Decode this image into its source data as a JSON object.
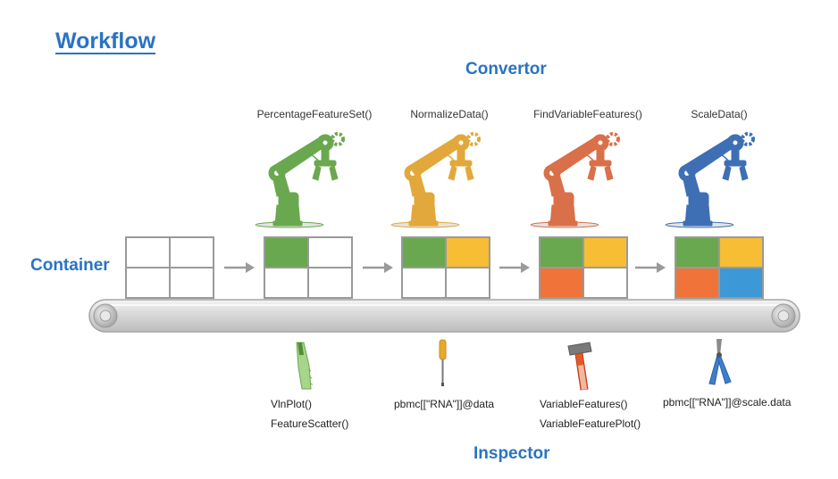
{
  "title": "Workflow",
  "convertor_label": "Convertor",
  "container_label": "Container",
  "inspector_label": "Inspector",
  "steps": [
    {
      "function": "PercentageFeatureSet()",
      "robot_color": "#6aa84f"
    },
    {
      "function": "NormalizeData()",
      "robot_color": "#e3a83b"
    },
    {
      "function": "FindVariableFeatures()",
      "robot_color": "#d9704a"
    },
    {
      "function": "ScaleData()",
      "robot_color": "#3e6fb5"
    }
  ],
  "containers": [
    {
      "cells": [
        "#ffffff",
        "#ffffff",
        "#ffffff",
        "#ffffff"
      ]
    },
    {
      "cells": [
        "#6aa84f",
        "#ffffff",
        "#ffffff",
        "#ffffff"
      ]
    },
    {
      "cells": [
        "#6aa84f",
        "#f7bd34",
        "#ffffff",
        "#ffffff"
      ]
    },
    {
      "cells": [
        "#6aa84f",
        "#f7bd34",
        "#f0733a",
        "#ffffff"
      ]
    },
    {
      "cells": [
        "#6aa84f",
        "#f7bd34",
        "#f0733a",
        "#3d98d8"
      ]
    }
  ],
  "inspectors": [
    {
      "tool_icon": "saw-icon",
      "lines": [
        "VlnPlot()",
        "FeatureScatter()"
      ]
    },
    {
      "tool_icon": "screwdriver-icon",
      "lines": [
        "pbmc[[\"RNA\"]]@data"
      ]
    },
    {
      "tool_icon": "hammer-icon",
      "lines": [
        "VariableFeatures()",
        "VariableFeaturePlot()"
      ]
    },
    {
      "tool_icon": "pliers-icon",
      "lines": [
        "pbmc[[\"RNA\"]]@scale.data"
      ]
    }
  ]
}
